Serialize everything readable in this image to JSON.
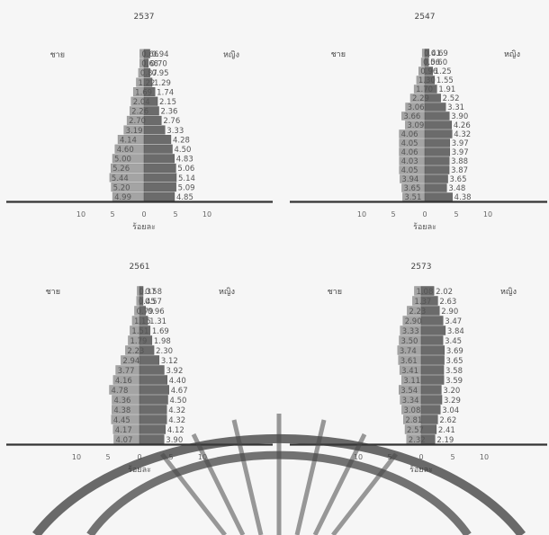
{
  "colors": {
    "male": "#a4a4a4",
    "female": "#6b6b6b",
    "baseline": "#333333",
    "background": "#f6f6f6"
  },
  "chart_data": [
    {
      "type": "bar",
      "title": "2537",
      "male_label": "ชาย",
      "female_label": "หญิง",
      "xlabel": "ร้อยละ",
      "xlim": [
        -10,
        10
      ],
      "xticks": [
        "10",
        "5",
        "0",
        "5",
        "10"
      ],
      "male": [
        "0.66",
        "0.68",
        "0.87",
        "1.22",
        "1.69",
        "2.04",
        "2.26",
        "2.70",
        "3.19",
        "4.14",
        "4.60",
        "5.00",
        "5.26",
        "5.44",
        "5.20",
        "4.99"
      ],
      "female": [
        "0.94",
        "0.70",
        "0.95",
        "1.29",
        "1.74",
        "2.15",
        "2.36",
        "2.76",
        "3.33",
        "4.28",
        "4.50",
        "4.83",
        "5.06",
        "5.14",
        "5.09",
        "4.85"
      ]
    },
    {
      "type": "bar",
      "title": "2547",
      "male_label": "ชาย",
      "female_label": "หญิง",
      "xlabel": "ร้อยละ",
      "xlim": [
        -10,
        10
      ],
      "xticks": [
        "10",
        "5",
        "0",
        "5",
        "10"
      ],
      "male": [
        "0.41",
        "0.56",
        "0.96",
        "1.30",
        "1.70",
        "2.29",
        "3.06",
        "3.66",
        "3.09",
        "4.06",
        "4.05",
        "4.06",
        "4.03",
        "4.05",
        "3.94",
        "3.65",
        "3.51"
      ],
      "female": [
        "0.69",
        "0.60",
        "1.25",
        "1.55",
        "1.91",
        "2.52",
        "3.31",
        "3.90",
        "4.26",
        "4.32",
        "3.97",
        "3.97",
        "3.88",
        "3.87",
        "3.65",
        "3.48",
        "4.38"
      ]
    },
    {
      "type": "bar",
      "title": "2561",
      "male_label": "ชาย",
      "female_label": "หญิง",
      "xlabel": "ร้อยละ",
      "xlim": [
        -10,
        10
      ],
      "xticks": [
        "10",
        "5",
        "0",
        "5",
        "10"
      ],
      "male": [
        "0.37",
        "0.45",
        "0.79",
        "1.15",
        "1.51",
        "1.79",
        "2.23",
        "2.94",
        "3.77",
        "4.16",
        "4.78",
        "4.36",
        "4.38",
        "4.45",
        "4.17",
        "4.07"
      ],
      "female": [
        "0.58",
        "0.57",
        "0.96",
        "1.31",
        "1.69",
        "1.98",
        "2.30",
        "3.12",
        "3.92",
        "4.40",
        "4.67",
        "4.50",
        "4.32",
        "4.32",
        "4.12",
        "3.90"
      ]
    },
    {
      "type": "bar",
      "title": "2573",
      "male_label": "ชาย",
      "female_label": "หญิง",
      "xlabel": "ร้อยละ",
      "xlim": [
        -10,
        10
      ],
      "xticks": [
        "10",
        "5",
        "0",
        "5",
        "10"
      ],
      "male": [
        "1.08",
        "1.37",
        "2.23",
        "2.90",
        "3.33",
        "3.50",
        "3.74",
        "3.61",
        "3.41",
        "3.11",
        "3.54",
        "3.34",
        "3.08",
        "2.81",
        "2.57",
        "2.32"
      ],
      "female": [
        "2.02",
        "2.63",
        "2.90",
        "3.47",
        "3.84",
        "3.45",
        "3.69",
        "3.65",
        "3.58",
        "3.59",
        "3.20",
        "3.29",
        "3.04",
        "2.62",
        "2.41",
        "2.19"
      ]
    }
  ]
}
